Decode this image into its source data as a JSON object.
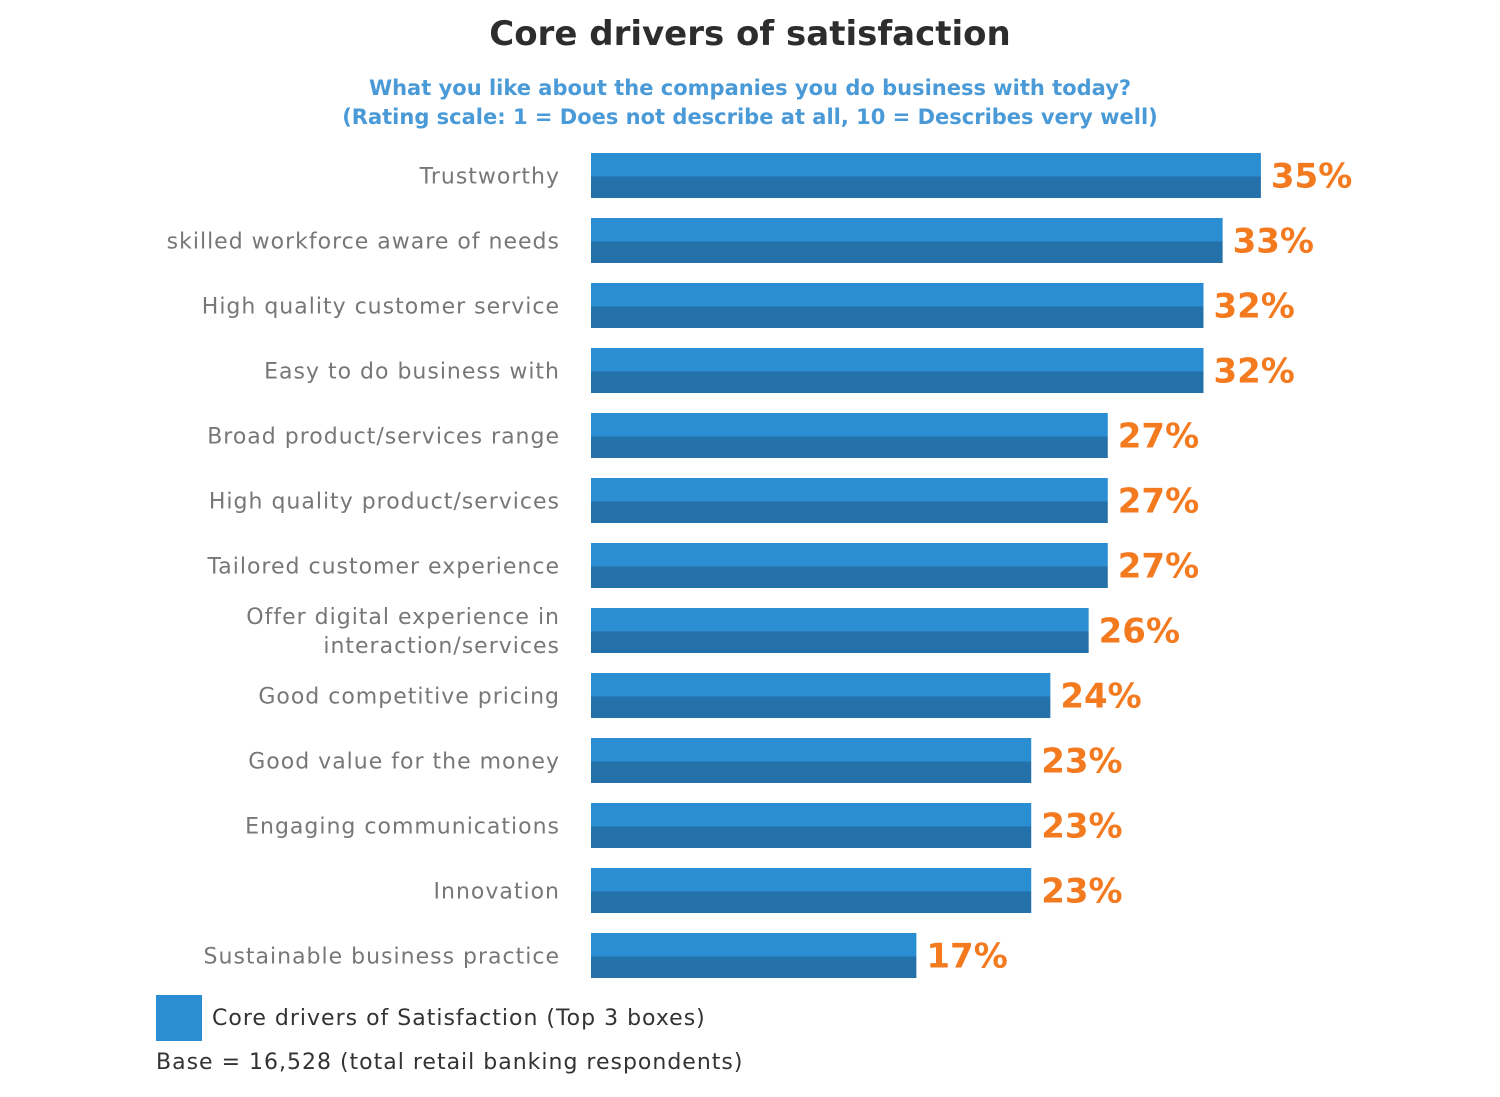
{
  "chart_data": {
    "type": "bar",
    "orientation": "horizontal",
    "title": "Core drivers of satisfaction",
    "subtitle": [
      "What you like about the companies you do business with today?",
      "(Rating scale: 1 = Does not describe at all, 10 = Describes very well)"
    ],
    "categories": [
      [
        "Trustworthy"
      ],
      [
        "skilled workforce aware of needs"
      ],
      [
        "High quality customer service"
      ],
      [
        "Easy to do business with"
      ],
      [
        "Broad product/services range"
      ],
      [
        "High quality product/services"
      ],
      [
        "Tailored customer experience"
      ],
      [
        "Offer digital experience in",
        "interaction/services"
      ],
      [
        "Good competitive pricing"
      ],
      [
        "Good value for the money"
      ],
      [
        "Engaging communications"
      ],
      [
        "Innovation"
      ],
      [
        "Sustainable business practice"
      ]
    ],
    "series": [
      {
        "name": "Core drivers of Satisfaction (Top 3 boxes)",
        "values": [
          35,
          33,
          32,
          32,
          27,
          27,
          27,
          26,
          24,
          23,
          23,
          23,
          17
        ]
      }
    ],
    "value_suffix": "%",
    "xlim": [
      0,
      100
    ],
    "grid": false,
    "legend": "bottom-left",
    "colors": {
      "bar_top": "#2b8dd2",
      "bar_bottom": "#2470a8",
      "value_label": "#f47a20"
    },
    "note": "Base = 16,528 (total retail banking respondents)"
  }
}
